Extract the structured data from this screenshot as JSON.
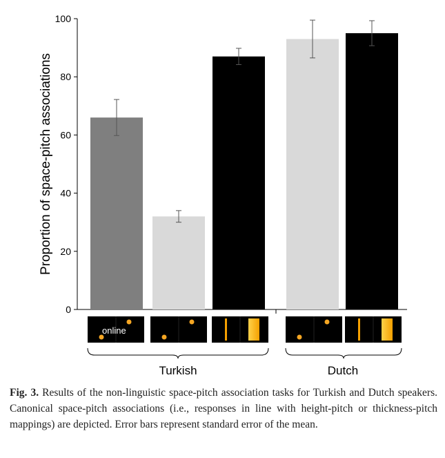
{
  "chart_data": {
    "type": "bar",
    "ylabel": "Proportion of space-pitch associations",
    "ylim": [
      0,
      100
    ],
    "yticks": [
      "0",
      "20",
      "40",
      "60",
      "80",
      "100"
    ],
    "groups": [
      {
        "label": "Turkish",
        "bars": [
          0,
          1,
          2
        ]
      },
      {
        "label": "Dutch",
        "bars": [
          3,
          4
        ]
      }
    ],
    "bars": [
      {
        "value": 66,
        "error": 6.2,
        "color": "#7f7f7f",
        "task": "height",
        "online": true
      },
      {
        "value": 32,
        "error": 2.0,
        "color": "#d9d9d9",
        "task": "height",
        "online": false
      },
      {
        "value": 87,
        "error": 2.8,
        "color": "#000000",
        "task": "thickness",
        "online": false
      },
      {
        "value": 93,
        "error": 6.5,
        "color": "#d9d9d9",
        "task": "height",
        "online": false
      },
      {
        "value": 95,
        "error": 4.3,
        "color": "#000000",
        "task": "thickness",
        "online": false
      }
    ],
    "icon_online_label": "online",
    "icon_colors": {
      "background": "#000000",
      "dot": "#f5a623",
      "bar_light": "#ffd24a",
      "bar_dark": "#f5a000"
    },
    "grid": false
  },
  "caption": {
    "label": "Fig. 3.",
    "text": " Results of the non-linguistic space-pitch association tasks for Turkish and Dutch speakers. Canonical space-pitch associations (i.e., responses in line with height-pitch or thickness-pitch mappings) are depicted. Error bars represent standard error of the mean."
  }
}
